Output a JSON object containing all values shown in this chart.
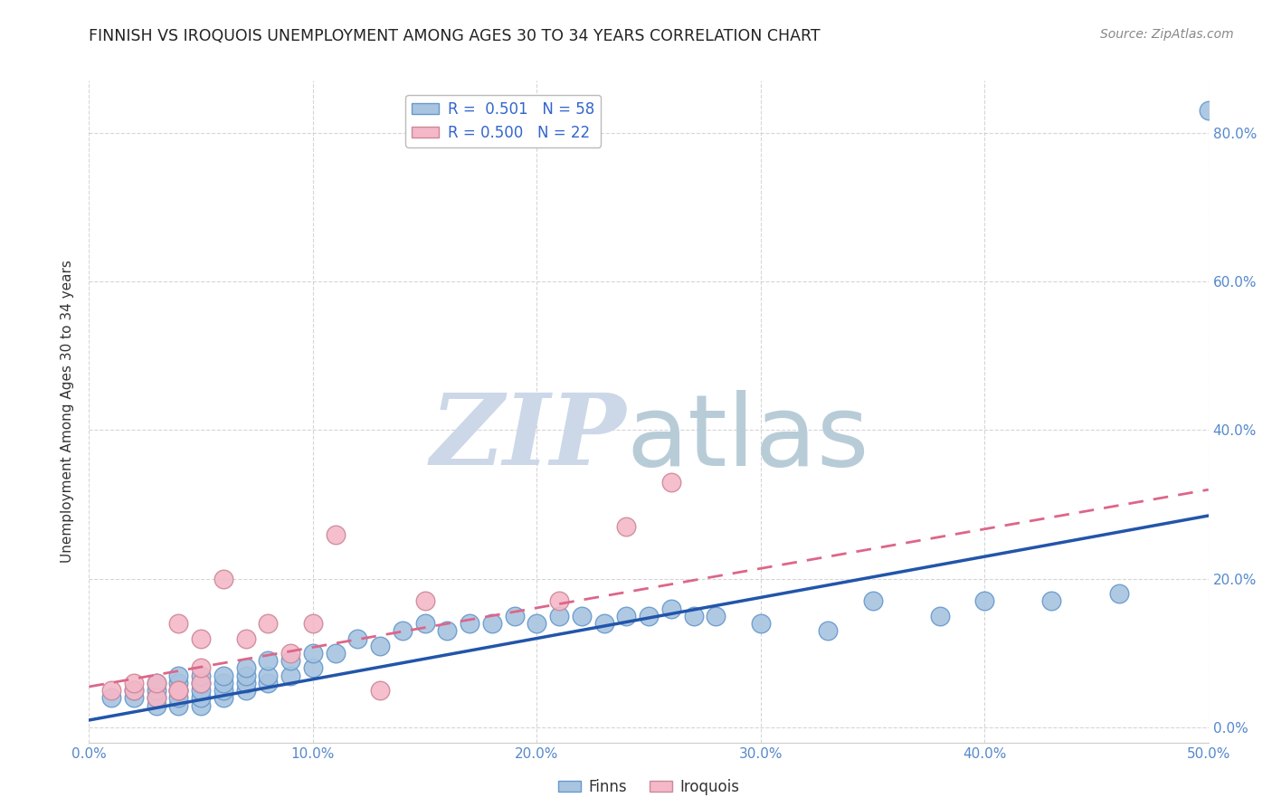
{
  "title": "FINNISH VS IROQUOIS UNEMPLOYMENT AMONG AGES 30 TO 34 YEARS CORRELATION CHART",
  "source": "Source: ZipAtlas.com",
  "ylabel": "Unemployment Among Ages 30 to 34 years",
  "xlim": [
    0,
    0.5
  ],
  "ylim": [
    -0.02,
    0.87
  ],
  "finns_color": "#a8c4e0",
  "finns_edge_color": "#6699cc",
  "iroquois_color": "#f4b8c8",
  "iroquois_edge_color": "#cc8899",
  "finns_line_color": "#2255aa",
  "iroquois_line_color": "#dd6688",
  "watermark_zip_color": "#ccd8e8",
  "watermark_atlas_color": "#b8ccd8",
  "tick_color": "#5588cc",
  "finns_x": [
    0.01,
    0.02,
    0.02,
    0.03,
    0.03,
    0.03,
    0.03,
    0.04,
    0.04,
    0.04,
    0.04,
    0.04,
    0.05,
    0.05,
    0.05,
    0.05,
    0.05,
    0.06,
    0.06,
    0.06,
    0.06,
    0.07,
    0.07,
    0.07,
    0.07,
    0.08,
    0.08,
    0.08,
    0.09,
    0.09,
    0.1,
    0.1,
    0.11,
    0.12,
    0.13,
    0.14,
    0.15,
    0.16,
    0.17,
    0.18,
    0.19,
    0.2,
    0.21,
    0.22,
    0.23,
    0.24,
    0.25,
    0.26,
    0.27,
    0.28,
    0.3,
    0.33,
    0.35,
    0.38,
    0.4,
    0.43,
    0.46,
    0.5
  ],
  "finns_y": [
    0.04,
    0.04,
    0.05,
    0.03,
    0.04,
    0.05,
    0.06,
    0.03,
    0.04,
    0.05,
    0.06,
    0.07,
    0.03,
    0.04,
    0.05,
    0.06,
    0.07,
    0.04,
    0.05,
    0.06,
    0.07,
    0.05,
    0.06,
    0.07,
    0.08,
    0.06,
    0.07,
    0.09,
    0.07,
    0.09,
    0.08,
    0.1,
    0.1,
    0.12,
    0.11,
    0.13,
    0.14,
    0.13,
    0.14,
    0.14,
    0.15,
    0.14,
    0.15,
    0.15,
    0.14,
    0.15,
    0.15,
    0.16,
    0.15,
    0.15,
    0.14,
    0.13,
    0.17,
    0.15,
    0.17,
    0.17,
    0.18,
    0.83
  ],
  "iroquois_x": [
    0.01,
    0.02,
    0.02,
    0.03,
    0.03,
    0.04,
    0.04,
    0.04,
    0.05,
    0.05,
    0.05,
    0.06,
    0.07,
    0.08,
    0.09,
    0.1,
    0.11,
    0.13,
    0.15,
    0.21,
    0.24,
    0.26
  ],
  "iroquois_y": [
    0.05,
    0.05,
    0.06,
    0.04,
    0.06,
    0.05,
    0.05,
    0.14,
    0.06,
    0.08,
    0.12,
    0.2,
    0.12,
    0.14,
    0.1,
    0.14,
    0.26,
    0.05,
    0.17,
    0.17,
    0.27,
    0.33
  ],
  "finns_trend_x": [
    0.0,
    0.5
  ],
  "finns_trend_y": [
    0.01,
    0.285
  ],
  "iroquois_trend_x": [
    0.0,
    0.5
  ],
  "iroquois_trend_y": [
    0.055,
    0.32
  ],
  "legend_finns_label": "R =  0.501   N = 58",
  "legend_iroquois_label": "R = 0.500   N = 22",
  "bottom_legend_finns": "Finns",
  "bottom_legend_iroquois": "Iroquois"
}
